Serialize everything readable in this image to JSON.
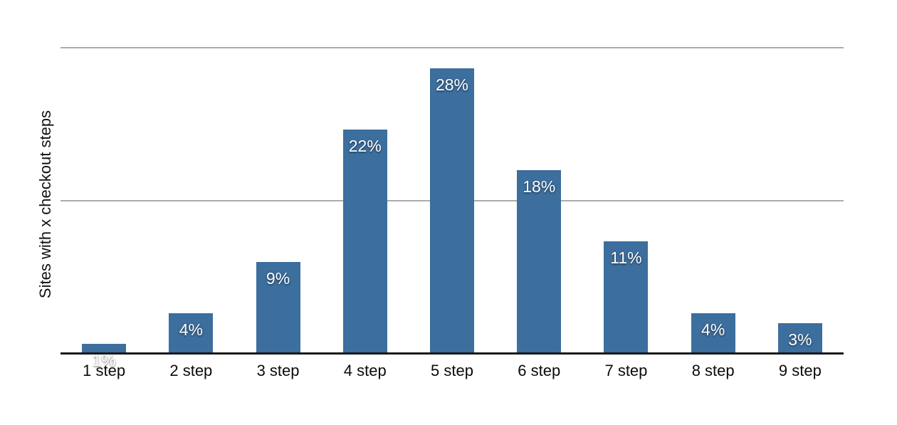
{
  "chart_data": {
    "type": "bar",
    "categories": [
      "1 step",
      "2 step",
      "3 step",
      "4 step",
      "5 step",
      "6 step",
      "7 step",
      "8 step",
      "9 step"
    ],
    "values": [
      1,
      4,
      9,
      22,
      28,
      18,
      11,
      4,
      3
    ],
    "value_labels": [
      "1%",
      "4%",
      "9%",
      "22%",
      "28%",
      "18%",
      "11%",
      "4%",
      "3%"
    ],
    "title": "",
    "xlabel": "",
    "ylabel": "Sites with x checkout steps",
    "ylim": [
      0,
      30
    ],
    "gridline_values": [
      15,
      30
    ],
    "y_tick_labels_shown": false,
    "legend": "none",
    "colors": {
      "bar": "#3C6E9E",
      "gridline": "#ACACAC",
      "axis": "#1A1A1A",
      "bar_label_text": "#FFFFFF",
      "tick_label_text": "#0B0B0B",
      "background": "#FFFFFF"
    }
  }
}
